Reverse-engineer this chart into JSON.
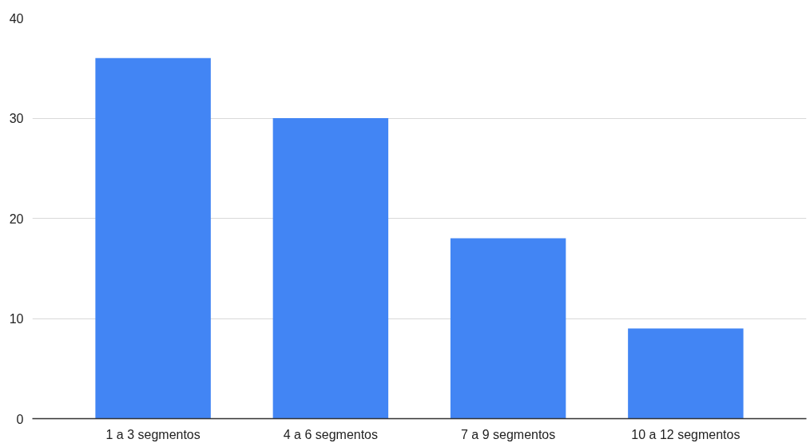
{
  "chart_data": {
    "type": "bar",
    "categories": [
      "1 a 3 segmentos",
      "4 a 6 segmentos",
      "7 a 9 segmentos",
      "10 a 12 segmentos"
    ],
    "values": [
      36,
      30,
      18,
      9
    ],
    "color": "#4285f4",
    "ylim": [
      0,
      40
    ],
    "yticks": [
      0,
      10,
      20,
      30,
      40
    ],
    "grid": "y"
  }
}
